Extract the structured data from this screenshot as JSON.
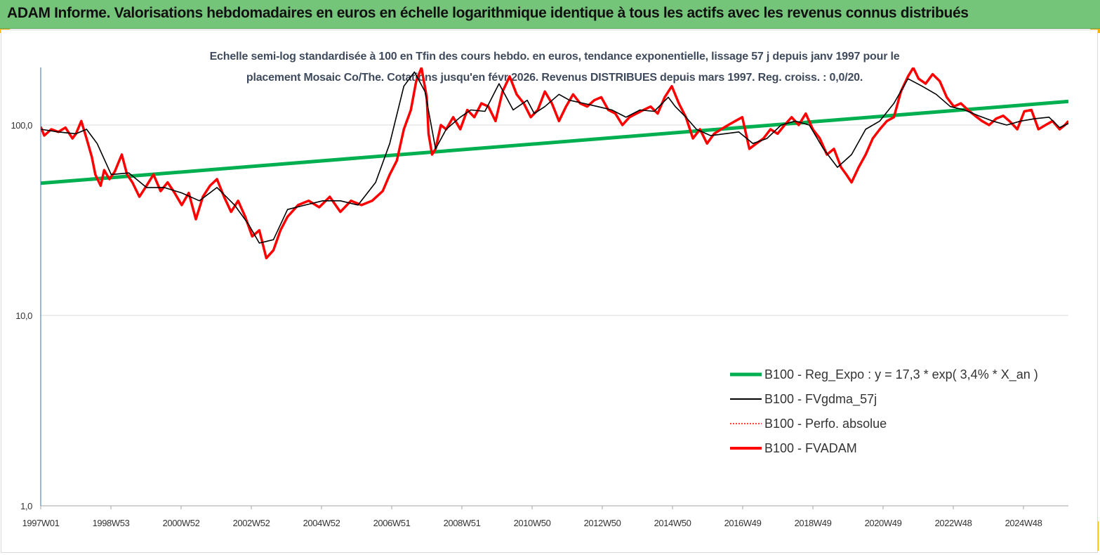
{
  "header": {
    "title": "ADAM Informe. Valorisations hebdomadaires en euros en échelle logarithmique identique à tous les actifs avec les revenus connus distribués"
  },
  "colors": {
    "banner": "#74c47a",
    "accent_corner": "#f5b400",
    "reg_expo": "#00b050",
    "fvgdma": "#000000",
    "perfo": "#ff0000",
    "fvadam": "#ff0000"
  },
  "chart_data": {
    "type": "line",
    "title_line1": "Echelle semi-log standardisée à 100 en Tfin des cours hebdo. en euros, tendance exponentielle, lissage 57 j depuis janv 1997 pour le",
    "title_line2": "placement Mosaic Co/The. Cotations jusqu'en févr 2026. Revenus DISTRIBUES depuis mars 1997. Reg. croiss. : 0,0/20.",
    "y_scale": "log",
    "ylim": [
      1,
      200
    ],
    "y_ticks": [
      "1,0",
      "10,0",
      "100,0"
    ],
    "x_range": [
      1997.0,
      2026.15
    ],
    "x_tick_labels": [
      "1997W01",
      "1998W53",
      "2000W52",
      "2002W52",
      "2004W52",
      "2006W51",
      "2008W51",
      "2010W50",
      "2012W50",
      "2014W50",
      "2016W49",
      "2018W49",
      "2020W49",
      "2022W48",
      "2024W48"
    ],
    "grid": "horizontal",
    "legend_position": "bottom-right",
    "series": [
      {
        "name": "B100 - Reg_Expo : y = 17,3 *  exp( 3,4% *  X_an )",
        "style": "solid-thick",
        "color": "#00b050",
        "x": [
          1997.0,
          2026.15
        ],
        "values": [
          49.5,
          133
        ]
      },
      {
        "name": "B100 - FVgdma_57j",
        "style": "solid-thin",
        "color": "#000000",
        "x": [
          1997.0,
          1997.5,
          1998.0,
          1998.3,
          1998.6,
          1999.0,
          1999.5,
          2000.0,
          2000.5,
          2001.0,
          2001.5,
          2002.0,
          2002.5,
          2002.9,
          2003.2,
          2003.6,
          2004.0,
          2004.5,
          2005.0,
          2005.5,
          2006.0,
          2006.5,
          2006.9,
          2007.3,
          2007.6,
          2007.9,
          2008.2,
          2008.5,
          2008.9,
          2009.2,
          2009.6,
          2010.0,
          2010.4,
          2010.8,
          2011.0,
          2011.3,
          2011.7,
          2012.0,
          2012.4,
          2012.8,
          2013.2,
          2013.6,
          2014.0,
          2014.4,
          2014.8,
          2015.0,
          2015.3,
          2015.6,
          2016.0,
          2016.4,
          2016.8,
          2017.2,
          2017.6,
          2018.0,
          2018.4,
          2018.8,
          2019.2,
          2019.6,
          2020.0,
          2020.4,
          2020.8,
          2021.2,
          2021.6,
          2022.0,
          2022.4,
          2022.8,
          2023.2,
          2023.6,
          2024.0,
          2024.4,
          2024.8,
          2025.2,
          2025.6,
          2025.9,
          2026.15
        ],
        "values": [
          95,
          92,
          90,
          95,
          80,
          55,
          56,
          47,
          47,
          44,
          40,
          47,
          38,
          30,
          24,
          25,
          36,
          38,
          40,
          40,
          38,
          50,
          80,
          160,
          190,
          150,
          75,
          95,
          110,
          120,
          118,
          165,
          120,
          135,
          115,
          125,
          145,
          135,
          130,
          125,
          120,
          110,
          120,
          118,
          140,
          125,
          110,
          95,
          88,
          90,
          92,
          80,
          85,
          100,
          105,
          100,
          75,
          60,
          70,
          95,
          105,
          130,
          175,
          160,
          145,
          125,
          120,
          112,
          105,
          100,
          105,
          108,
          110,
          97,
          102
        ]
      },
      {
        "name": "B100 - Perfo. absolue",
        "style": "dotted",
        "color": "#ff0000",
        "x": [],
        "values": []
      },
      {
        "name": "B100 - FVADAM",
        "style": "solid-thick",
        "color": "#ff0000",
        "x": [
          1997.0,
          1997.1,
          1997.3,
          1997.5,
          1997.7,
          1997.9,
          1998.0,
          1998.15,
          1998.3,
          1998.45,
          1998.55,
          1998.7,
          1998.8,
          1998.95,
          1999.1,
          1999.3,
          1999.45,
          1999.6,
          1999.8,
          2000.0,
          2000.2,
          2000.4,
          2000.6,
          2000.8,
          2001.0,
          2001.2,
          2001.4,
          2001.6,
          2001.8,
          2002.0,
          2002.2,
          2002.4,
          2002.6,
          2002.8,
          2003.0,
          2003.2,
          2003.4,
          2003.6,
          2003.8,
          2004.0,
          2004.3,
          2004.6,
          2004.9,
          2005.2,
          2005.5,
          2005.8,
          2006.1,
          2006.4,
          2006.7,
          2006.9,
          2007.1,
          2007.3,
          2007.5,
          2007.65,
          2007.8,
          2007.95,
          2008.0,
          2008.1,
          2008.2,
          2008.35,
          2008.5,
          2008.7,
          2008.9,
          2009.1,
          2009.3,
          2009.5,
          2009.7,
          2009.9,
          2010.1,
          2010.3,
          2010.5,
          2010.7,
          2010.9,
          2011.1,
          2011.3,
          2011.5,
          2011.7,
          2011.9,
          2012.1,
          2012.3,
          2012.5,
          2012.7,
          2012.9,
          2013.1,
          2013.3,
          2013.5,
          2013.7,
          2013.9,
          2014.1,
          2014.3,
          2014.5,
          2014.7,
          2014.9,
          2015.1,
          2015.3,
          2015.5,
          2015.7,
          2015.9,
          2016.1,
          2016.3,
          2016.5,
          2016.7,
          2016.9,
          2017.1,
          2017.3,
          2017.5,
          2017.7,
          2017.9,
          2018.1,
          2018.3,
          2018.5,
          2018.7,
          2018.9,
          2019.1,
          2019.3,
          2019.5,
          2019.7,
          2019.85,
          2020.0,
          2020.2,
          2020.4,
          2020.6,
          2020.8,
          2021.0,
          2021.2,
          2021.4,
          2021.6,
          2021.75,
          2021.9,
          2022.1,
          2022.3,
          2022.5,
          2022.7,
          2022.9,
          2023.1,
          2023.3,
          2023.5,
          2023.7,
          2023.9,
          2024.1,
          2024.3,
          2024.5,
          2024.7,
          2024.9,
          2025.1,
          2025.3,
          2025.5,
          2025.7,
          2025.9,
          2026.05,
          2026.15
        ],
        "values": [
          98,
          88,
          95,
          92,
          97,
          85,
          90,
          105,
          85,
          68,
          55,
          48,
          58,
          52,
          57,
          70,
          55,
          50,
          42,
          48,
          55,
          45,
          50,
          44,
          38,
          44,
          32,
          42,
          48,
          52,
          42,
          35,
          40,
          33,
          26,
          28,
          20,
          22,
          28,
          33,
          38,
          40,
          37,
          42,
          35,
          40,
          38,
          40,
          45,
          55,
          65,
          95,
          120,
          170,
          200,
          140,
          90,
          70,
          75,
          100,
          95,
          110,
          95,
          120,
          110,
          130,
          125,
          105,
          150,
          180,
          145,
          130,
          110,
          120,
          150,
          130,
          105,
          125,
          145,
          130,
          125,
          135,
          140,
          120,
          115,
          100,
          110,
          115,
          120,
          125,
          115,
          140,
          160,
          130,
          110,
          85,
          95,
          80,
          90,
          95,
          100,
          105,
          110,
          75,
          80,
          85,
          95,
          90,
          100,
          110,
          100,
          115,
          95,
          85,
          70,
          75,
          60,
          55,
          50,
          60,
          70,
          85,
          95,
          105,
          110,
          150,
          180,
          200,
          175,
          165,
          185,
          170,
          140,
          125,
          130,
          120,
          112,
          105,
          100,
          108,
          112,
          104,
          95,
          118,
          120,
          95,
          100,
          105,
          95,
          100,
          105
        ]
      }
    ]
  }
}
